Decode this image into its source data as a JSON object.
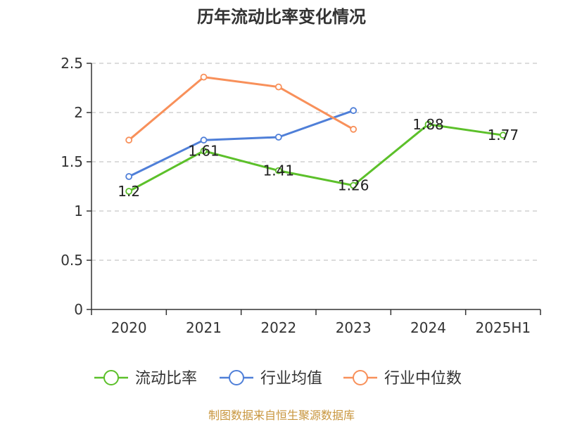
{
  "chart_data": {
    "type": "line",
    "title": "历年流动比率变化情况",
    "categories": [
      "2020",
      "2021",
      "2022",
      "2023",
      "2024",
      "2025H1"
    ],
    "ylim": [
      0,
      2.5
    ],
    "yticks": [
      "0",
      "0.5",
      "1",
      "1.5",
      "2",
      "2.5"
    ],
    "grid": true,
    "legend_position": "bottom",
    "series": [
      {
        "name": "流动比率",
        "color": "#5cc02a",
        "values": [
          1.2,
          1.61,
          1.41,
          1.26,
          1.88,
          1.77
        ],
        "labels": [
          "1.2",
          "1.61",
          "1.41",
          "1.26",
          "1.88",
          "1.77"
        ]
      },
      {
        "name": "行业均值",
        "color": "#4f7fd8",
        "values": [
          1.35,
          1.72,
          1.75,
          2.02,
          null,
          null
        ]
      },
      {
        "name": "行业中位数",
        "color": "#f8905a",
        "values": [
          1.72,
          2.36,
          2.26,
          1.83,
          null,
          null
        ]
      }
    ]
  },
  "source": "制图数据来自恒生聚源数据库"
}
